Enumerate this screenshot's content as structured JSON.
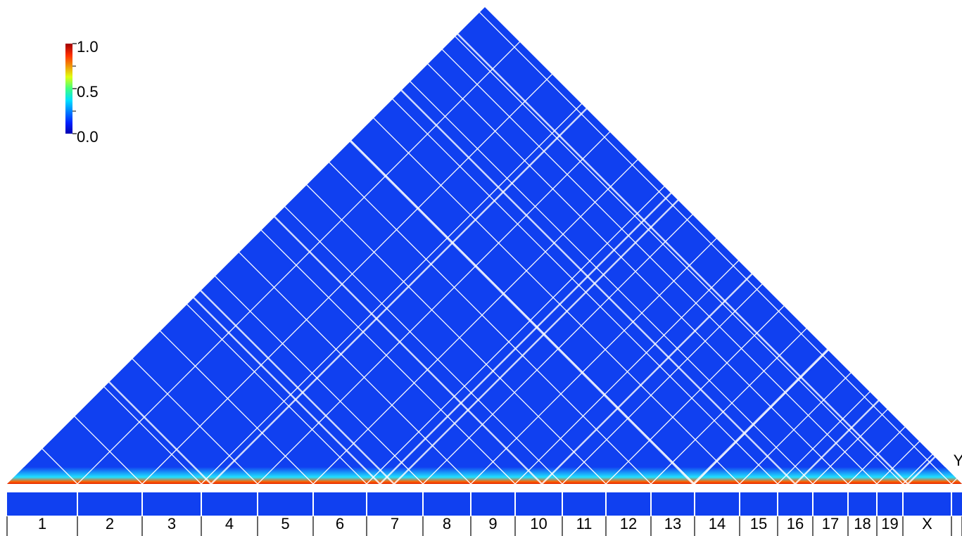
{
  "chart_data": {
    "type": "heatmap",
    "categories": [
      "1",
      "2",
      "3",
      "4",
      "5",
      "6",
      "7",
      "8",
      "9",
      "10",
      "11",
      "12",
      "13",
      "14",
      "15",
      "16",
      "17",
      "18",
      "19",
      "X",
      "Y"
    ],
    "colorbar": {
      "lim": [
        {
          "value": 0,
          "label": "0.0"
        },
        {
          "value": 1,
          "label": "1.0"
        }
      ],
      "ticks": [
        {
          "value": 0,
          "label": "0.0"
        },
        0.5,
        {
          "value": 1,
          "label": "1.0"
        }
      ],
      "colormap": "jet"
    }
  }
}
